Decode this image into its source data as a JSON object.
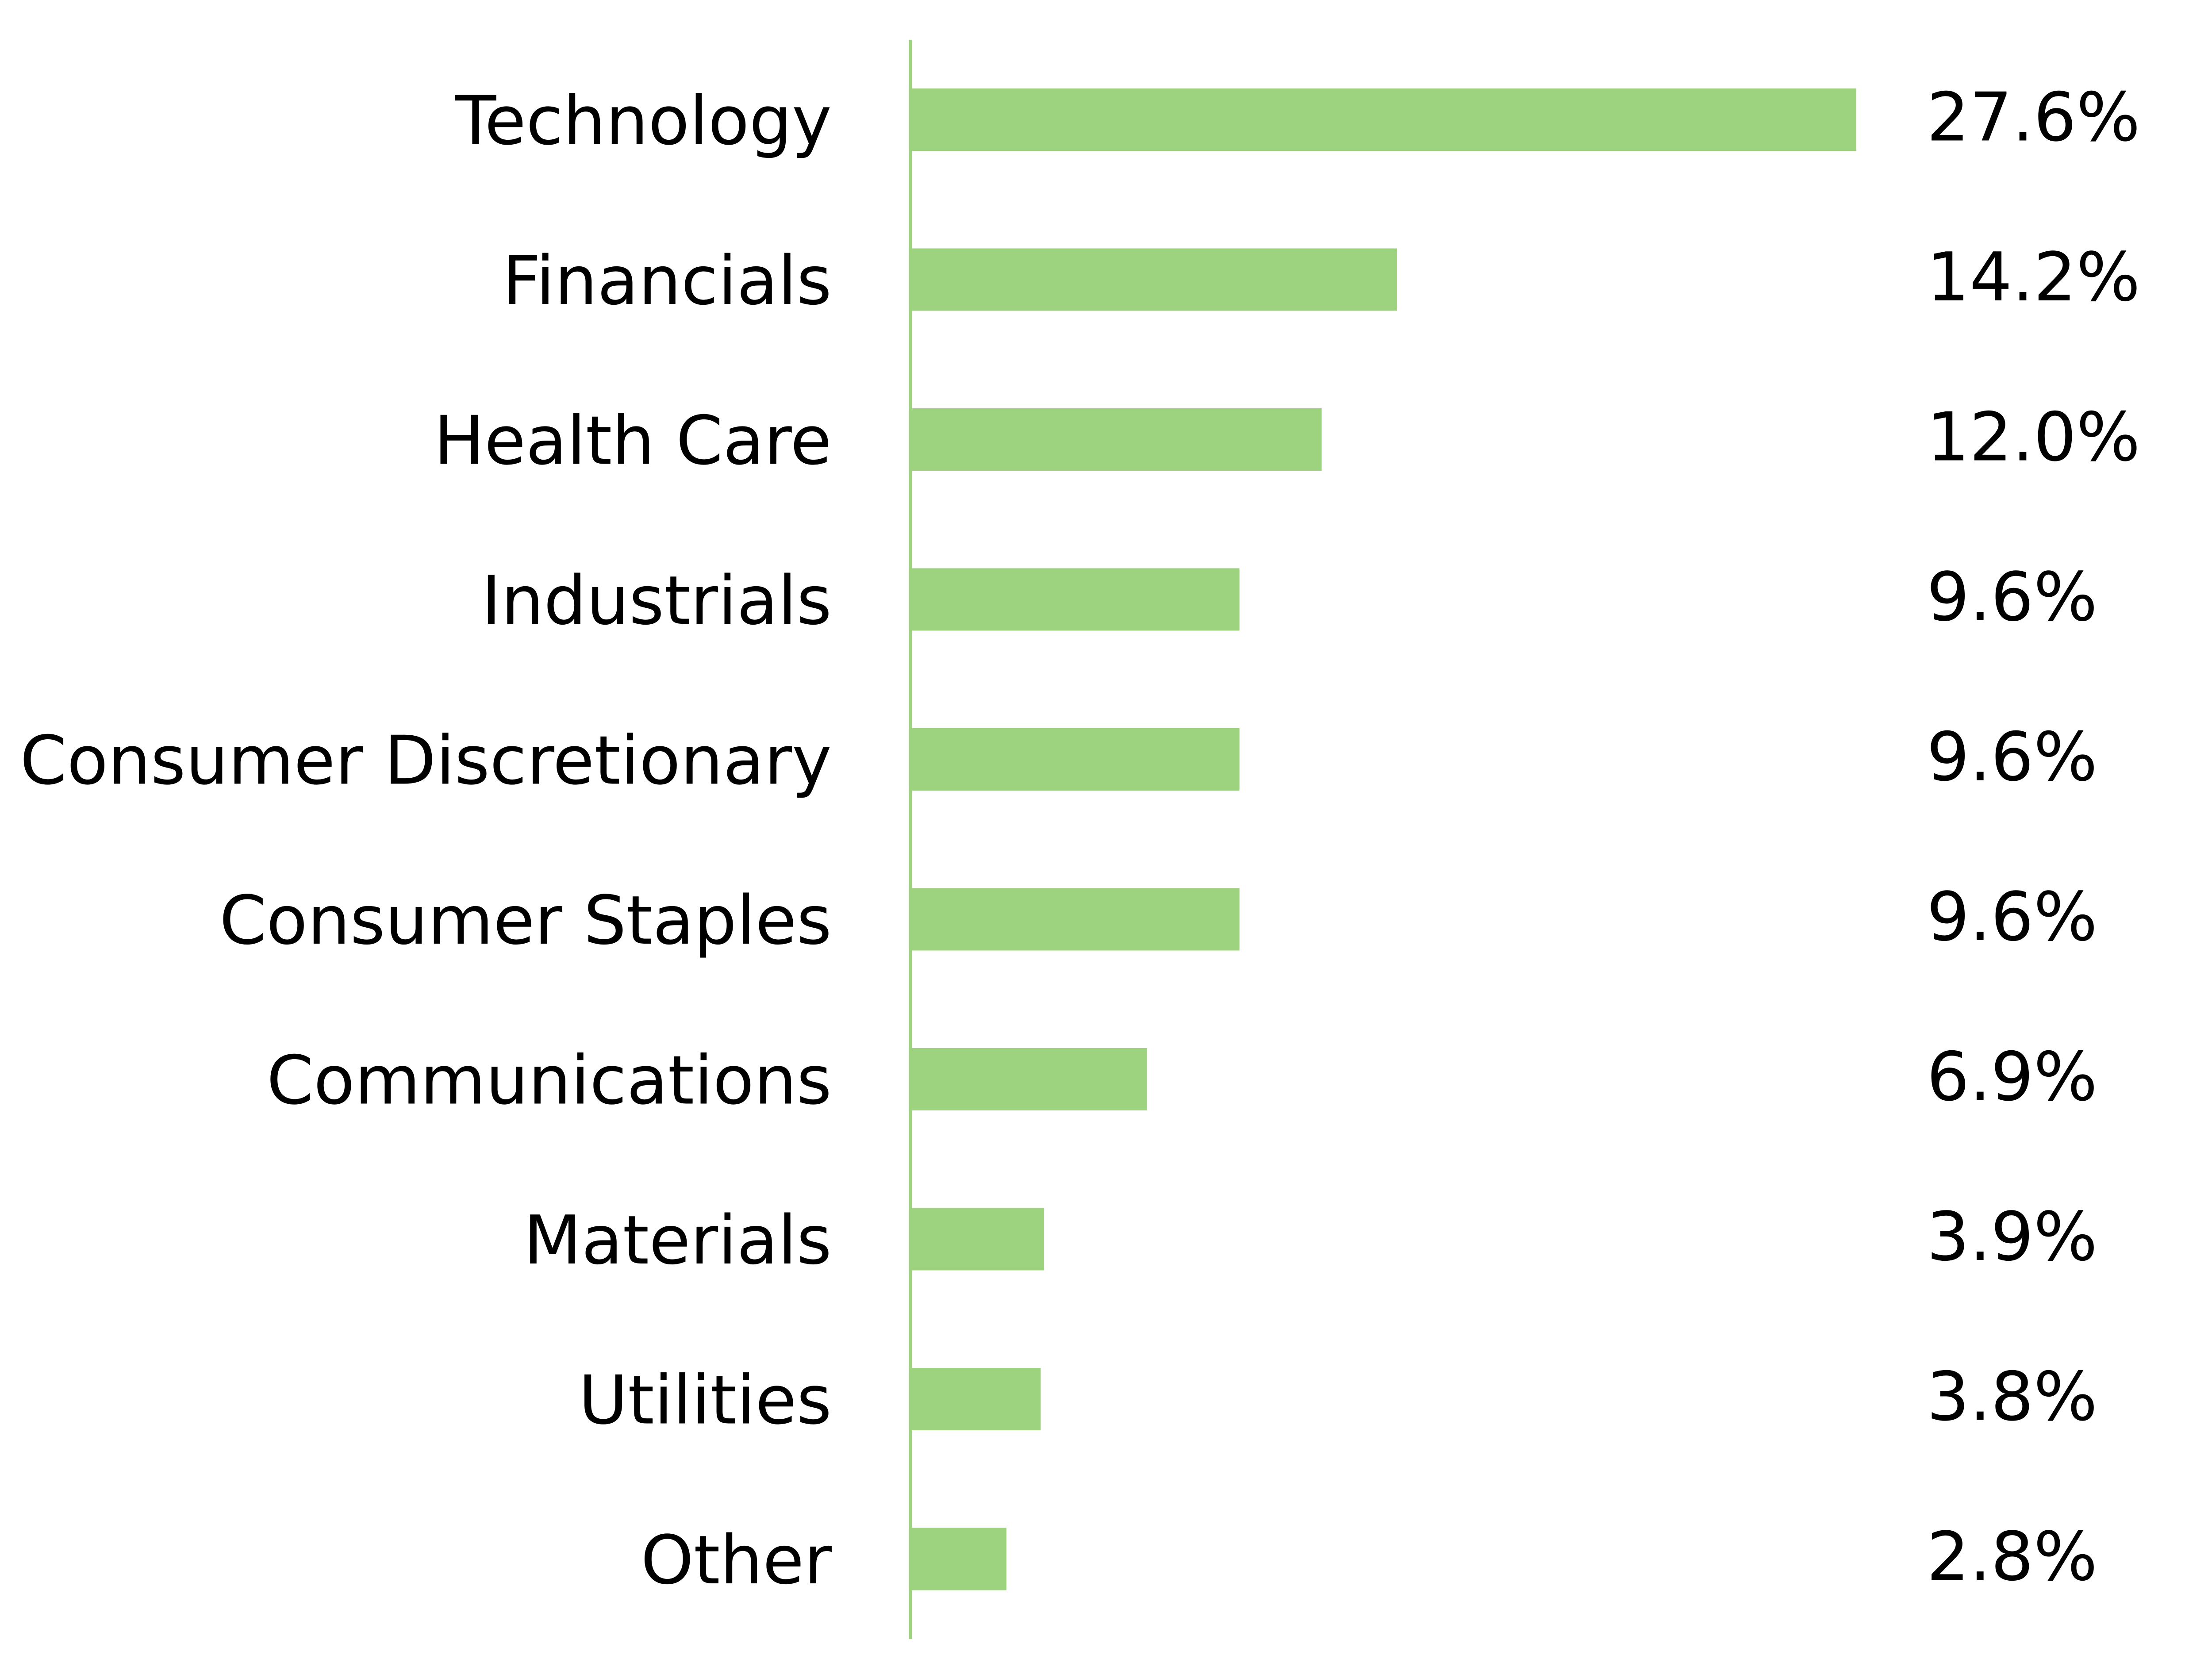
{
  "chart_data": {
    "type": "bar",
    "orientation": "horizontal",
    "categories": [
      "Technology",
      "Financials",
      "Health Care",
      "Industrials",
      "Consumer Discretionary",
      "Consumer Staples",
      "Communications",
      "Materials",
      "Utilities",
      "Other"
    ],
    "values": [
      27.6,
      14.2,
      12.0,
      9.6,
      9.6,
      9.6,
      6.9,
      3.9,
      3.8,
      2.8
    ],
    "value_labels": [
      "27.6%",
      "14.2%",
      "12.0%",
      "9.6%",
      "9.6%",
      "9.6%",
      "6.9%",
      "3.9%",
      "3.8%",
      "2.8%"
    ],
    "unit": "%",
    "xlim": [
      0,
      27.6
    ],
    "grid": false,
    "legend": "none",
    "bar_color": "#9dd37e",
    "axis_color": "#9dd37e"
  }
}
